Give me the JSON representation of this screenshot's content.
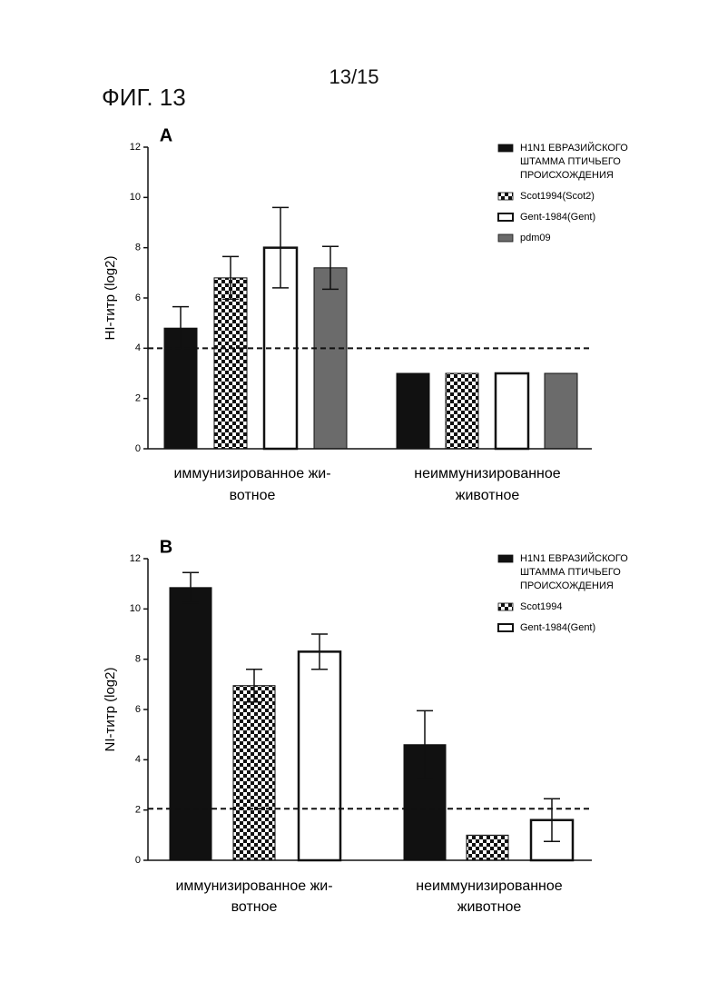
{
  "page_number": "13/15",
  "figure_label": "ФИГ. 13",
  "chart_data": [
    {
      "type": "bar",
      "panel_label": "A",
      "ylabel": "HI-титр (log2)",
      "ylim": [
        0,
        12
      ],
      "yticks": [
        "0",
        "2",
        "4",
        "6",
        "8",
        "10",
        "12"
      ],
      "categories": [
        [
          "иммунизированное жи-",
          "вотное"
        ],
        [
          "неиммунизированное",
          "животное"
        ]
      ],
      "series": [
        {
          "name": "H1N1 ЕВРАЗИЙСКОГО ШТАММА ПТИЧЬЕГО ПРОИСХОЖДЕНИЯ",
          "legend_lines": [
            "H1N1 ЕВРАЗИЙСКОГО",
            "ШТАММА ПТИЧЬЕГО",
            "ПРОИСХОЖДЕНИЯ"
          ],
          "pattern": "solid-black",
          "values": [
            4.8,
            3
          ],
          "errors": [
            0.85,
            null
          ]
        },
        {
          "name": "Scot1994(Scot2)",
          "legend_lines": [
            "Scot1994(Scot2)"
          ],
          "pattern": "checker",
          "values": [
            6.8,
            3
          ],
          "errors": [
            0.85,
            null
          ]
        },
        {
          "name": "Gent-1984(Gent)",
          "legend_lines": [
            "Gent-1984(Gent)"
          ],
          "pattern": "white",
          "values": [
            8.0,
            3
          ],
          "errors": [
            1.6,
            null
          ]
        },
        {
          "name": "pdm09",
          "legend_lines": [
            "pdm09"
          ],
          "pattern": "solid-gray",
          "values": [
            7.2,
            3
          ],
          "errors": [
            0.85,
            null
          ]
        }
      ],
      "threshold": 4,
      "legend_position": "top-right"
    },
    {
      "type": "bar",
      "panel_label": "B",
      "ylabel": "NI-титр (log2)",
      "ylim": [
        0,
        12
      ],
      "yticks": [
        "0",
        "2",
        "4",
        "6",
        "8",
        "10",
        "12"
      ],
      "categories": [
        [
          "иммунизированное жи-",
          "вотное"
        ],
        [
          "неиммунизированное",
          "животное"
        ]
      ],
      "series": [
        {
          "name": "H1N1 ЕВРАЗИЙСКОГО ШТАММА ПТИЧЬЕГО ПРОИСХОЖДЕНИЯ",
          "legend_lines": [
            "H1N1 ЕВРАЗИЙСКОГО",
            "ШТАММА ПТИЧЬЕГО",
            "ПРОИСХОЖДЕНИЯ"
          ],
          "pattern": "solid-black",
          "values": [
            10.85,
            4.6
          ],
          "errors": [
            0.6,
            1.35
          ]
        },
        {
          "name": "Scot1994",
          "legend_lines": [
            "Scot1994"
          ],
          "pattern": "checker",
          "values": [
            6.95,
            1.0
          ],
          "errors": [
            0.65,
            null
          ]
        },
        {
          "name": "Gent-1984(Gent)",
          "legend_lines": [
            "Gent-1984(Gent)"
          ],
          "pattern": "white",
          "values": [
            8.3,
            1.6
          ],
          "errors": [
            0.7,
            0.85
          ]
        }
      ],
      "threshold": 2.05,
      "legend_position": "top-right"
    }
  ]
}
